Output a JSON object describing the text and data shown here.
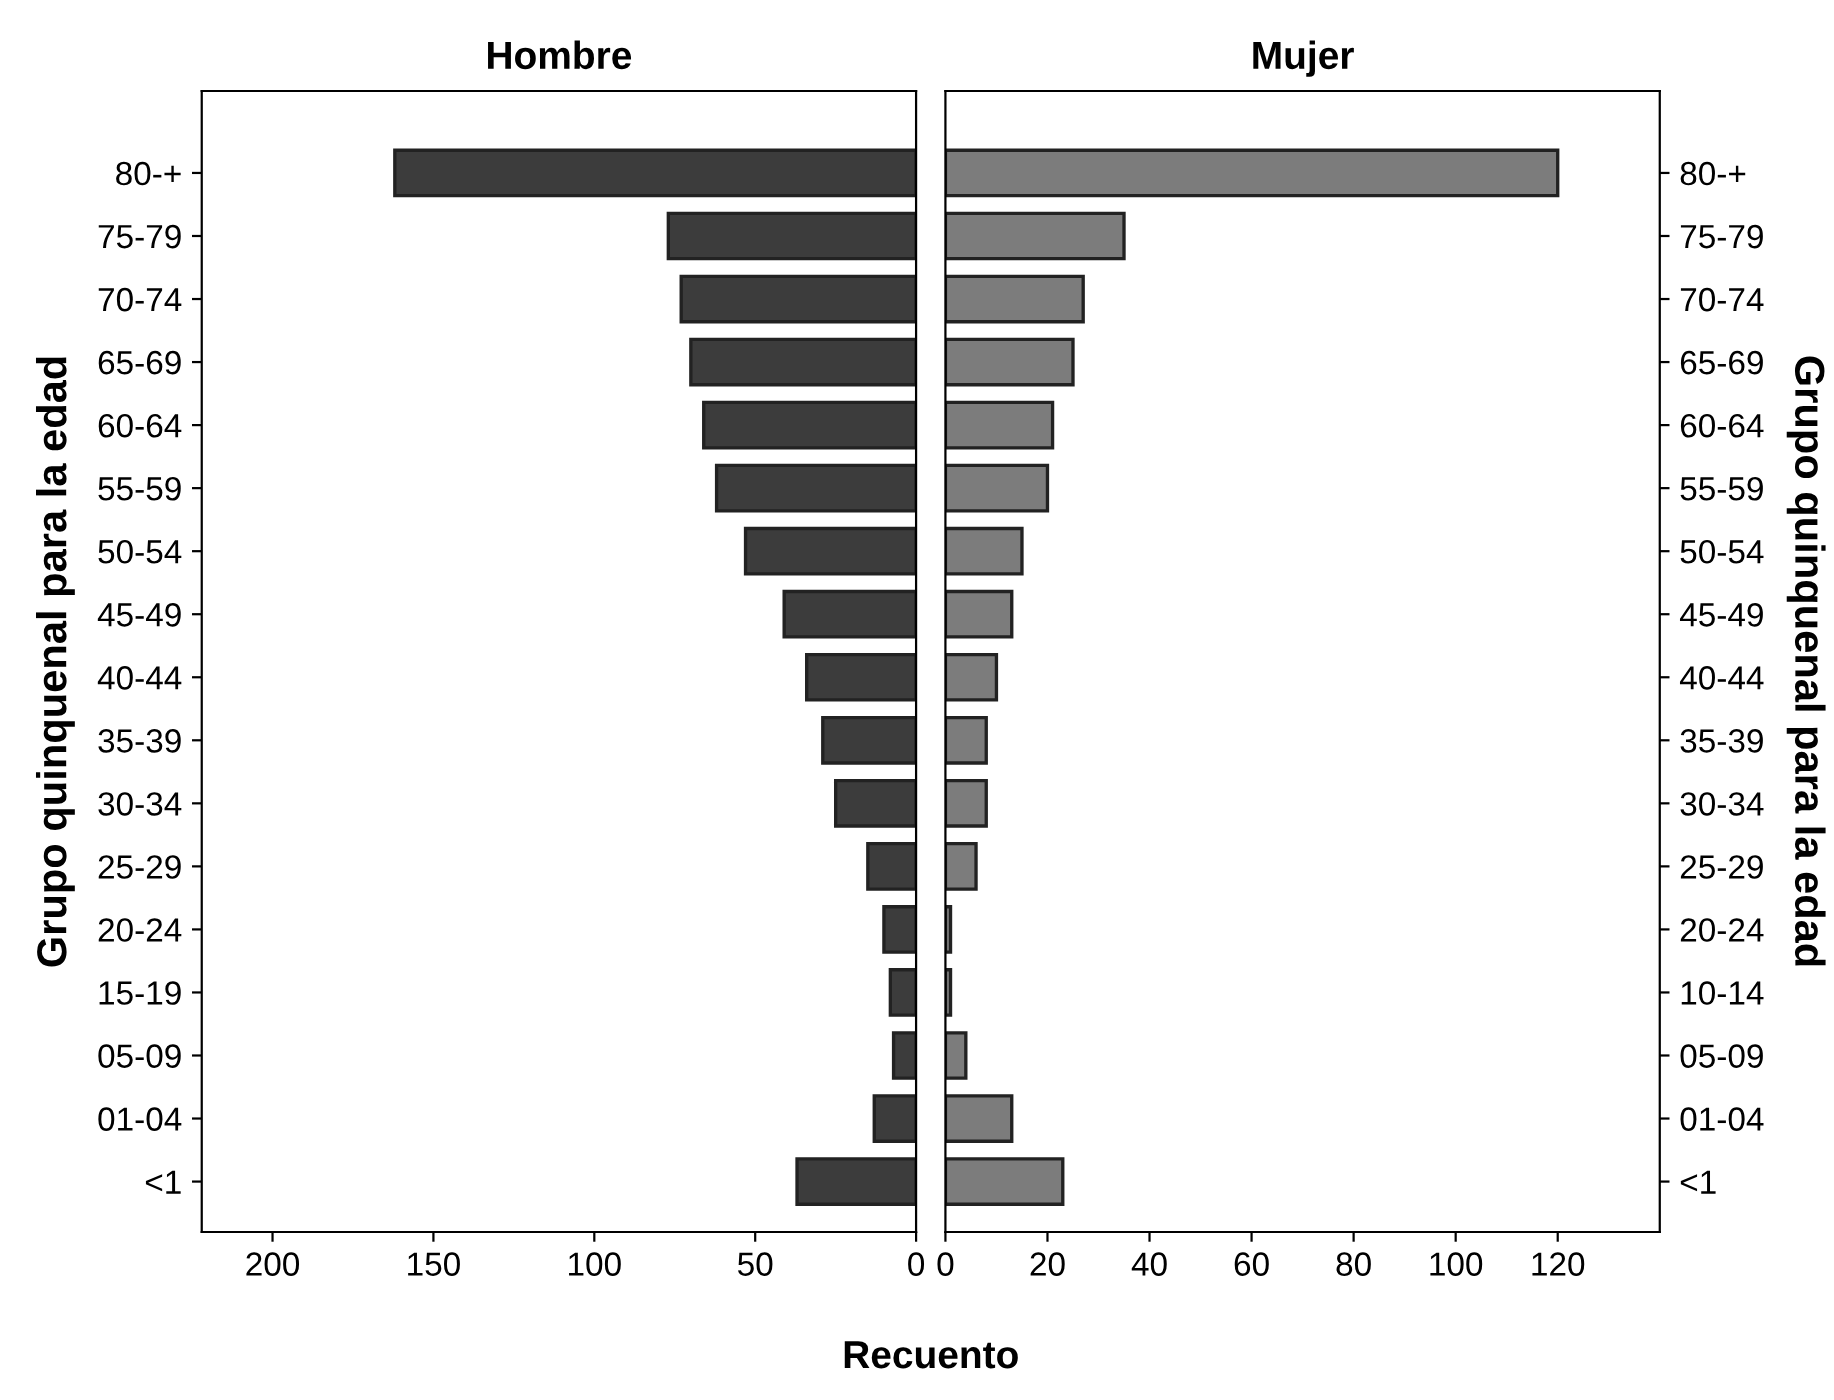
{
  "chart_data": [
    {
      "type": "bar",
      "orientation": "horizontal",
      "title": "Hombre",
      "xlabel": "Recuento",
      "ylabel": "Grupo quinquenal para la edad",
      "categories": [
        "80-+",
        "75-79",
        "70-74",
        "65-69",
        "60-64",
        "55-59",
        "50-54",
        "45-49",
        "40-44",
        "35-39",
        "30-34",
        "25-29",
        "20-24",
        "15-19",
        "05-09",
        "01-04",
        "<1"
      ],
      "values": [
        162,
        77,
        73,
        70,
        66,
        62,
        53,
        41,
        34,
        29,
        25,
        15,
        10,
        8,
        7,
        13,
        37
      ],
      "color": "#3c3c3c",
      "xlim": [
        222,
        0
      ],
      "xticks": [
        200,
        150,
        100,
        50,
        0
      ],
      "grid": false
    },
    {
      "type": "bar",
      "orientation": "horizontal",
      "title": "Mujer",
      "ylabel": "Grupo quinquenal para la edad",
      "categories": [
        "80-+",
        "75-79",
        "70-74",
        "65-69",
        "60-64",
        "55-59",
        "50-54",
        "45-49",
        "40-44",
        "35-39",
        "30-34",
        "25-29",
        "20-24",
        "10-14",
        "05-09",
        "01-04",
        "<1"
      ],
      "values": [
        120,
        35,
        27,
        25,
        21,
        20,
        15,
        13,
        10,
        8,
        8,
        6,
        1,
        1,
        4,
        13,
        23
      ],
      "color": "#7c7c7c",
      "xlim": [
        0,
        140
      ],
      "xticks": [
        0,
        20,
        40,
        60,
        80,
        100,
        120
      ],
      "grid": false
    }
  ]
}
